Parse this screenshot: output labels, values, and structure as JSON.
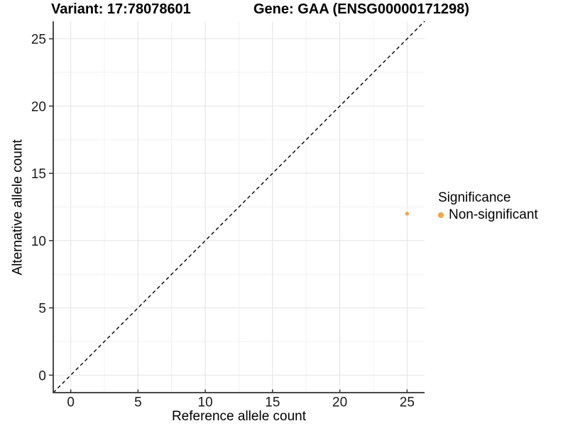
{
  "header": {
    "left_title": "Variant: 17:78078601",
    "right_title": "Gene: GAA (ENSG00000171298)"
  },
  "chart_data": {
    "type": "scatter",
    "xlabel": "Reference allele count",
    "ylabel": "Alternative allele count",
    "xlim": [
      -1.3,
      26.3
    ],
    "ylim": [
      -1.3,
      26.3
    ],
    "x_ticks": [
      0,
      5,
      10,
      15,
      20,
      25
    ],
    "y_ticks": [
      0,
      5,
      10,
      15,
      20,
      25
    ],
    "x_minor_ticks": [
      2.5,
      7.5,
      12.5,
      17.5,
      22.5
    ],
    "y_minor_ticks": [
      2.5,
      7.5,
      12.5,
      17.5,
      22.5
    ],
    "grid": true,
    "identity_line": {
      "style": "dashed",
      "color": "#000000",
      "from": -1.3,
      "to": 26.3
    },
    "series": [
      {
        "name": "Non-significant",
        "color": "#F9A242",
        "points": [
          {
            "x": 25,
            "y": 12
          }
        ]
      }
    ],
    "legend": {
      "title": "Significance",
      "position": "right",
      "entries": [
        {
          "label": "Non-significant",
          "color": "#F9A242"
        }
      ]
    },
    "colors": {
      "grid_major": "#E4E4E4",
      "grid_minor": "#F0F0F0",
      "axis_line": "#4A4A4A",
      "tick_mark": "#333333",
      "tick_text": "#1A1A1A"
    }
  }
}
